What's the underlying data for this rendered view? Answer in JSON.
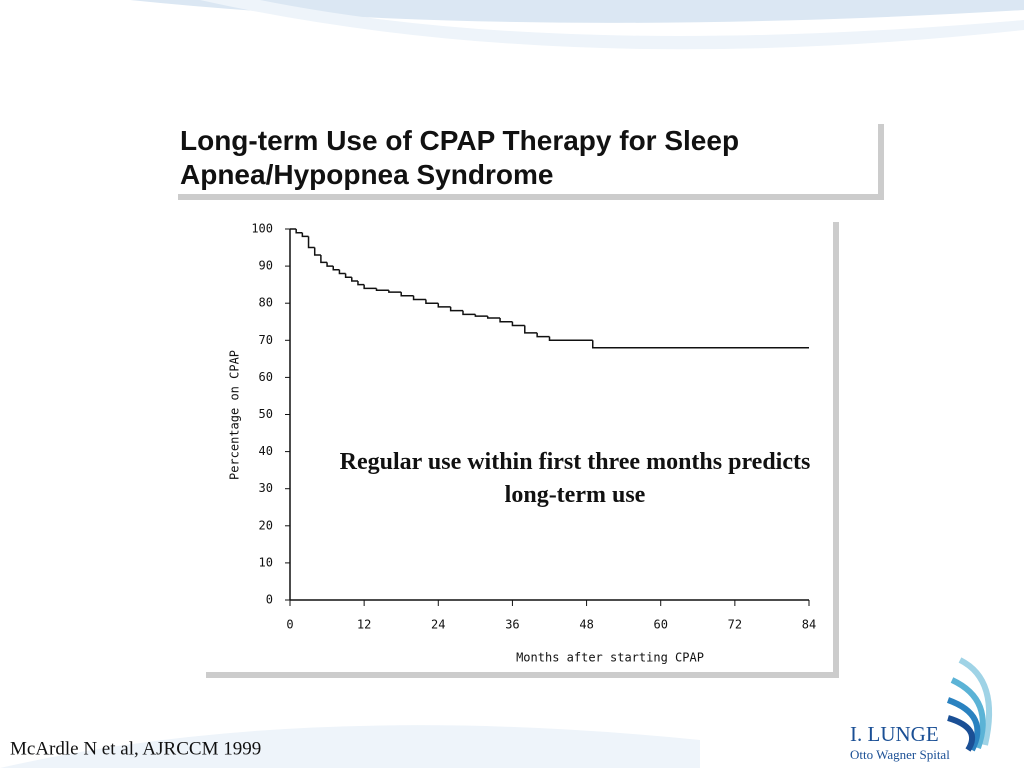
{
  "chart_data": {
    "type": "step",
    "title": "Long-term Use of CPAP Therapy for Sleep Apnea/Hypopnea Syndrome",
    "annotation": "Regular use within first three months predicts long-term use",
    "x_label": "Months after starting CPAP",
    "y_label": "Percentage on CPAP",
    "x": [
      0,
      1,
      2,
      3,
      4,
      5,
      6,
      7,
      8,
      9,
      10,
      11,
      12,
      14,
      16,
      18,
      20,
      22,
      24,
      26,
      28,
      30,
      32,
      34,
      36,
      38,
      40,
      42,
      49,
      84
    ],
    "values": [
      100,
      99,
      98,
      95,
      93,
      91,
      90,
      89,
      88,
      87,
      86,
      85,
      84,
      83.5,
      83,
      82,
      81,
      80,
      79,
      78,
      77,
      76.5,
      76,
      75,
      74,
      72,
      71,
      70,
      68,
      68
    ],
    "color": "#111111",
    "xlim": [
      0,
      84
    ],
    "xticks": [
      0,
      12,
      24,
      36,
      48,
      60,
      72,
      84
    ],
    "ylim": [
      0,
      100
    ],
    "yticks": [
      0,
      10,
      20,
      30,
      40,
      50,
      60,
      70,
      80,
      90,
      100
    ]
  },
  "citation": "McArdle N et al, AJRCCM 1999",
  "logo": {
    "name": "I. LUNGE",
    "subtitle": "Otto Wagner Spital"
  }
}
